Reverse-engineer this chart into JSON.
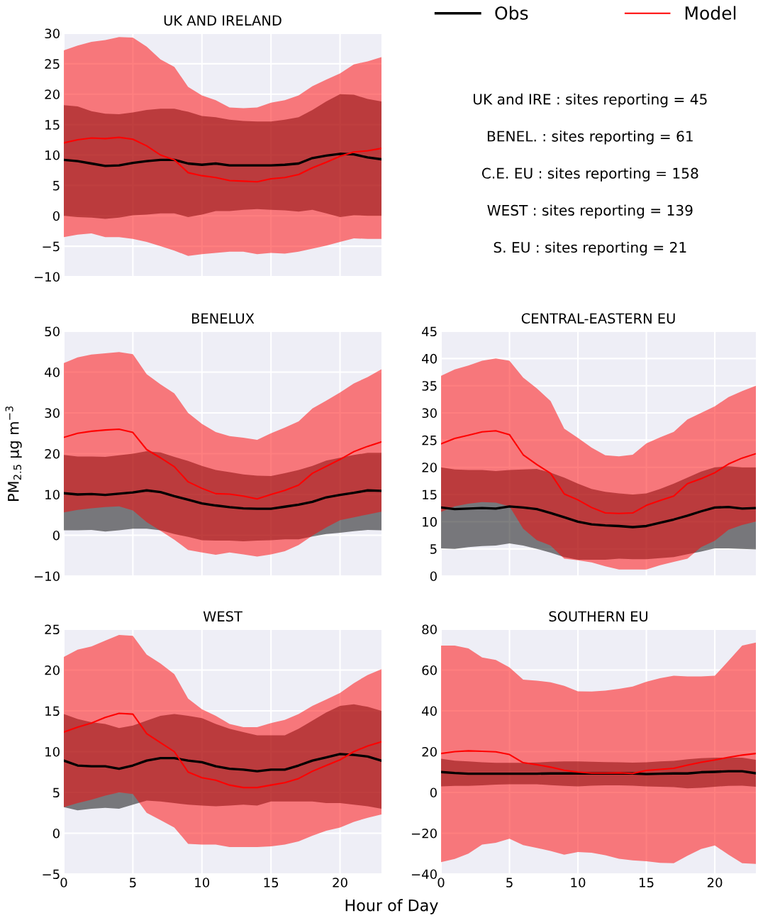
{
  "chart_data": [
    {
      "type": "line",
      "title": "UK AND IRELAND",
      "x": [
        0,
        1,
        2,
        3,
        4,
        5,
        6,
        7,
        8,
        9,
        10,
        11,
        12,
        13,
        14,
        15,
        16,
        17,
        18,
        19,
        20,
        21,
        22,
        23
      ],
      "xlim": [
        0,
        23
      ],
      "xticks": [
        0,
        5,
        10,
        15,
        20
      ],
      "ylim": [
        -10,
        30
      ],
      "yticks": [
        -10,
        -5,
        0,
        5,
        10,
        15,
        20,
        25,
        30
      ],
      "tick_labels": "y",
      "grid": true,
      "legend": "right",
      "series": [
        {
          "name": "Obs",
          "color": "#000000",
          "values": [
            9.2,
            9.0,
            8.6,
            8.2,
            8.3,
            8.7,
            9.0,
            9.2,
            9.2,
            8.6,
            8.4,
            8.6,
            8.3,
            8.3,
            8.3,
            8.3,
            8.4,
            8.6,
            9.5,
            9.9,
            10.2,
            10.1,
            9.6,
            9.3
          ],
          "upper": [
            18.2,
            18.0,
            17.2,
            16.8,
            16.7,
            17.0,
            17.4,
            17.6,
            17.6,
            17.1,
            16.4,
            16.2,
            15.8,
            15.6,
            15.5,
            15.5,
            15.8,
            16.2,
            17.4,
            18.8,
            20.0,
            19.9,
            19.2,
            18.8
          ],
          "lower": [
            0,
            -0.2,
            -0.3,
            -0.5,
            -0.3,
            0.1,
            0.2,
            0.4,
            0.4,
            -0.2,
            0.2,
            0.8,
            0.8,
            1.0,
            1.1,
            1.0,
            0.9,
            0.7,
            1.0,
            0.4,
            -0.2,
            0.1,
            0,
            0
          ]
        },
        {
          "name": "Model",
          "color": "#ff0000",
          "values": [
            12.0,
            12.5,
            12.8,
            12.7,
            12.9,
            12.6,
            11.5,
            10.0,
            9.2,
            7.1,
            6.6,
            6.3,
            5.8,
            5.7,
            5.6,
            6.1,
            6.3,
            6.8,
            7.9,
            8.8,
            9.8,
            10.5,
            10.7,
            11.1
          ],
          "upper": [
            27.2,
            28.0,
            28.6,
            28.9,
            29.4,
            29.3,
            27.8,
            25.7,
            24.5,
            21.2,
            19.8,
            19.0,
            17.8,
            17.7,
            17.8,
            18.6,
            19.0,
            19.8,
            21.3,
            22.4,
            23.4,
            24.9,
            25.4,
            26.1
          ],
          "lower": [
            -3.5,
            -3.1,
            -2.9,
            -3.5,
            -3.5,
            -3.8,
            -4.3,
            -5.0,
            -5.7,
            -6.6,
            -6.3,
            -6.1,
            -5.9,
            -5.9,
            -6.3,
            -6.1,
            -6.2,
            -5.9,
            -5.4,
            -4.9,
            -4.3,
            -3.7,
            -3.8,
            -3.8
          ]
        }
      ]
    },
    {
      "type": "other",
      "annotations": [
        "UK and IRE : sites reporting = 45",
        "BENEL. : sites reporting = 61",
        "C.E. EU : sites reporting = 158",
        "WEST : sites reporting = 139",
        "S. EU : sites reporting = 21"
      ]
    },
    {
      "type": "line",
      "title": "BENELUX",
      "ylabel": "PM$_{2.5}$ μg m$^{−3}$",
      "x": [
        0,
        1,
        2,
        3,
        4,
        5,
        6,
        7,
        8,
        9,
        10,
        11,
        12,
        13,
        14,
        15,
        16,
        17,
        18,
        19,
        20,
        21,
        22,
        23
      ],
      "xlim": [
        0,
        23
      ],
      "xticks": [
        0,
        5,
        10,
        15,
        20
      ],
      "ylim": [
        -10,
        50
      ],
      "yticks": [
        -10,
        0,
        10,
        20,
        30,
        40,
        50
      ],
      "tick_labels": "y",
      "grid": true,
      "series": [
        {
          "color": "#000000",
          "values": [
            10.3,
            10.0,
            10.1,
            9.9,
            10.2,
            10.5,
            11.0,
            10.6,
            9.6,
            8.7,
            7.8,
            7.3,
            6.9,
            6.6,
            6.5,
            6.5,
            7.0,
            7.5,
            8.2,
            9.3,
            9.9,
            10.4,
            11.0,
            10.9
          ],
          "upper": [
            19.7,
            19.3,
            19.3,
            19.2,
            19.6,
            20.0,
            20.6,
            20.3,
            19.2,
            18.2,
            17.0,
            16.0,
            15.5,
            14.9,
            14.6,
            14.5,
            15.2,
            16.0,
            17.0,
            18.3,
            19.0,
            19.7,
            20.2,
            20.2
          ],
          "lower": [
            1.2,
            1.2,
            1.3,
            0.9,
            1.2,
            1.6,
            1.6,
            1.2,
            0.3,
            -0.4,
            -1.2,
            -1.3,
            -1.3,
            -1.5,
            -1.3,
            -1.2,
            -1.0,
            -1.0,
            -0.3,
            0.3,
            0.6,
            1.0,
            1.3,
            1.2
          ]
        },
        {
          "color": "#ff0000",
          "values": [
            24.0,
            25.0,
            25.5,
            25.8,
            26.0,
            25.2,
            21.0,
            19.0,
            16.8,
            13.1,
            11.5,
            10.2,
            10.1,
            9.6,
            8.9,
            10.0,
            11.0,
            12.3,
            15.2,
            16.9,
            18.6,
            20.5,
            21.8,
            22.9
          ],
          "upper": [
            42.2,
            43.6,
            44.3,
            44.6,
            44.9,
            44.4,
            39.5,
            37.0,
            34.8,
            30.0,
            27.3,
            25.3,
            24.3,
            23.9,
            23.4,
            25.0,
            26.4,
            27.9,
            31.1,
            33.0,
            35.0,
            37.2,
            38.8,
            40.7
          ],
          "lower": [
            5.6,
            6.2,
            6.6,
            6.9,
            7.1,
            6.1,
            3.2,
            1.1,
            -1.1,
            -3.6,
            -4.2,
            -4.8,
            -4.2,
            -4.7,
            -5.2,
            -4.7,
            -3.9,
            -2.4,
            -0.1,
            1.9,
            3.7,
            4.4,
            5.1,
            5.8
          ]
        }
      ]
    },
    {
      "type": "line",
      "title": "CENTRAL-EASTERN EU",
      "x": [
        0,
        1,
        2,
        3,
        4,
        5,
        6,
        7,
        8,
        9,
        10,
        11,
        12,
        13,
        14,
        15,
        16,
        17,
        18,
        19,
        20,
        21,
        22,
        23
      ],
      "xlim": [
        0,
        23
      ],
      "xticks": [
        0,
        5,
        10,
        15,
        20
      ],
      "ylim": [
        0,
        45
      ],
      "yticks": [
        0,
        5,
        10,
        15,
        20,
        25,
        30,
        35,
        40,
        45
      ],
      "tick_labels": "y",
      "grid": true,
      "series": [
        {
          "color": "#000000",
          "values": [
            12.6,
            12.3,
            12.4,
            12.5,
            12.4,
            12.8,
            12.6,
            12.3,
            11.6,
            10.8,
            10.0,
            9.5,
            9.3,
            9.2,
            9.0,
            9.2,
            9.8,
            10.4,
            11.1,
            11.9,
            12.6,
            12.7,
            12.4,
            12.5
          ],
          "upper": [
            20.0,
            19.6,
            19.5,
            19.5,
            19.3,
            19.5,
            19.6,
            19.7,
            19.0,
            18.1,
            17.0,
            16.0,
            15.5,
            15.2,
            15.0,
            15.2,
            16.0,
            17.0,
            18.1,
            19.2,
            20.0,
            20.2,
            20.0,
            20.0
          ],
          "lower": [
            5.1,
            5.0,
            5.3,
            5.5,
            5.6,
            6.0,
            5.6,
            5.0,
            4.3,
            3.5,
            3.0,
            3.0,
            3.0,
            3.2,
            3.1,
            3.1,
            3.3,
            3.5,
            4.0,
            4.5,
            5.1,
            5.1,
            5.0,
            4.9
          ]
        },
        {
          "color": "#ff0000",
          "values": [
            24.3,
            25.3,
            25.9,
            26.5,
            26.7,
            26.0,
            22.3,
            20.5,
            18.9,
            15.1,
            14.0,
            12.6,
            11.6,
            11.5,
            11.6,
            13.0,
            13.9,
            14.7,
            17.0,
            17.9,
            19.0,
            20.6,
            21.7,
            22.5
          ],
          "upper": [
            36.8,
            38.0,
            38.7,
            39.6,
            40.0,
            39.6,
            36.5,
            34.5,
            32.2,
            27.1,
            25.4,
            23.6,
            22.2,
            22.0,
            22.3,
            24.4,
            25.5,
            26.5,
            28.8,
            30.0,
            31.2,
            32.9,
            34.0,
            35.0
          ],
          "lower": [
            11.8,
            12.8,
            13.3,
            13.6,
            13.5,
            12.8,
            8.7,
            6.6,
            5.6,
            3.2,
            2.9,
            2.5,
            1.8,
            1.2,
            1.2,
            1.2,
            2.0,
            2.6,
            3.2,
            5.3,
            6.5,
            8.5,
            9.4,
            10.0
          ]
        }
      ]
    },
    {
      "type": "line",
      "title": "WEST",
      "xlabel": "Hour of Day",
      "x": [
        0,
        1,
        2,
        3,
        4,
        5,
        6,
        7,
        8,
        9,
        10,
        11,
        12,
        13,
        14,
        15,
        16,
        17,
        18,
        19,
        20,
        21,
        22,
        23
      ],
      "xlim": [
        0,
        23
      ],
      "xticks": [
        0,
        5,
        10,
        15,
        20
      ],
      "ylim": [
        -5,
        25
      ],
      "yticks": [
        -5,
        0,
        5,
        10,
        15,
        20,
        25
      ],
      "grid": true,
      "series": [
        {
          "color": "#000000",
          "values": [
            8.9,
            8.3,
            8.2,
            8.2,
            7.9,
            8.3,
            8.9,
            9.2,
            9.2,
            8.9,
            8.7,
            8.2,
            7.9,
            7.8,
            7.6,
            7.8,
            7.8,
            8.3,
            8.9,
            9.3,
            9.7,
            9.6,
            9.4,
            8.9
          ],
          "upper": [
            14.6,
            14.0,
            13.6,
            13.4,
            12.9,
            13.2,
            13.8,
            14.4,
            14.6,
            14.4,
            14.1,
            13.4,
            12.8,
            12.4,
            12.0,
            12.0,
            12.0,
            12.8,
            13.8,
            14.8,
            15.6,
            15.8,
            15.5,
            15.0
          ],
          "lower": [
            3.2,
            2.8,
            3.0,
            3.1,
            3.0,
            3.5,
            4.0,
            3.9,
            3.7,
            3.5,
            3.4,
            3.3,
            3.4,
            3.5,
            3.4,
            3.9,
            3.9,
            3.9,
            3.9,
            3.7,
            3.7,
            3.5,
            3.3,
            3.0
          ]
        },
        {
          "color": "#ff0000",
          "values": [
            12.4,
            13.0,
            13.5,
            14.2,
            14.7,
            14.6,
            12.2,
            11.1,
            10.0,
            7.5,
            6.8,
            6.5,
            5.9,
            5.6,
            5.6,
            5.9,
            6.2,
            6.7,
            7.6,
            8.3,
            9.0,
            10.0,
            10.7,
            11.2
          ],
          "upper": [
            21.6,
            22.5,
            22.9,
            23.6,
            24.3,
            24.2,
            21.9,
            20.8,
            19.5,
            16.5,
            15.2,
            14.4,
            13.4,
            13.0,
            13.0,
            13.5,
            13.9,
            14.6,
            15.6,
            16.4,
            17.2,
            18.4,
            19.4,
            20.1
          ],
          "lower": [
            3.2,
            3.7,
            4.1,
            4.6,
            5.0,
            4.8,
            2.5,
            1.6,
            0.7,
            -1.3,
            -1.4,
            -1.4,
            -1.7,
            -1.7,
            -1.7,
            -1.6,
            -1.4,
            -1.0,
            -0.3,
            0.3,
            0.7,
            1.4,
            1.9,
            2.3
          ]
        }
      ]
    },
    {
      "type": "line",
      "title": "SOUTHERN EU",
      "x": [
        0,
        1,
        2,
        3,
        4,
        5,
        6,
        7,
        8,
        9,
        10,
        11,
        12,
        13,
        14,
        15,
        16,
        17,
        18,
        19,
        20,
        21,
        22,
        23
      ],
      "xlim": [
        0,
        23
      ],
      "xticks": [
        0,
        5,
        10,
        15,
        20
      ],
      "ylim": [
        -40,
        80
      ],
      "yticks": [
        -40,
        -20,
        0,
        20,
        40,
        60,
        80
      ],
      "grid": true,
      "series": [
        {
          "color": "#000000",
          "values": [
            10.0,
            9.5,
            9.2,
            9.2,
            9.2,
            9.2,
            9.2,
            9.2,
            9.3,
            9.3,
            9.3,
            9.3,
            9.3,
            9.3,
            9.3,
            9.0,
            9.2,
            9.3,
            9.3,
            9.9,
            10.1,
            10.4,
            10.4,
            9.4
          ],
          "upper": [
            16.5,
            15.6,
            15.2,
            14.8,
            14.5,
            14.5,
            14.5,
            14.7,
            15.0,
            15.2,
            15.2,
            15.0,
            14.9,
            14.8,
            14.6,
            14.8,
            15.2,
            15.5,
            16.3,
            16.8,
            17.0,
            17.1,
            17.0,
            16.0
          ],
          "lower": [
            3.0,
            3.2,
            3.2,
            3.5,
            3.8,
            4.0,
            4.0,
            4.0,
            3.6,
            3.2,
            3.0,
            3.3,
            3.5,
            3.5,
            3.3,
            3.0,
            2.8,
            2.6,
            2.0,
            2.3,
            2.8,
            3.2,
            3.3,
            2.8
          ]
        },
        {
          "color": "#ff0000",
          "values": [
            19.1,
            20.0,
            20.4,
            20.2,
            19.9,
            18.6,
            14.6,
            13.6,
            12.4,
            10.9,
            10.0,
            9.5,
            9.5,
            9.6,
            9.3,
            10.8,
            11.3,
            11.8,
            13.4,
            14.8,
            15.9,
            17.2,
            18.3,
            19.1
          ],
          "upper": [
            72.0,
            72.0,
            70.6,
            66.2,
            65.0,
            61.3,
            55.3,
            54.8,
            54.0,
            52.3,
            49.6,
            49.5,
            49.9,
            50.8,
            51.9,
            54.3,
            56.0,
            57.2,
            56.9,
            56.9,
            57.2,
            64.5,
            72.0,
            73.5
          ],
          "lower": [
            -34.2,
            -32.6,
            -30.0,
            -25.6,
            -24.7,
            -22.7,
            -25.8,
            -27.2,
            -28.7,
            -30.5,
            -29.2,
            -29.6,
            -30.8,
            -32.5,
            -33.3,
            -33.7,
            -34.5,
            -34.7,
            -31.0,
            -27.7,
            -26.0,
            -30.5,
            -34.7,
            -35.0
          ]
        }
      ]
    }
  ]
}
